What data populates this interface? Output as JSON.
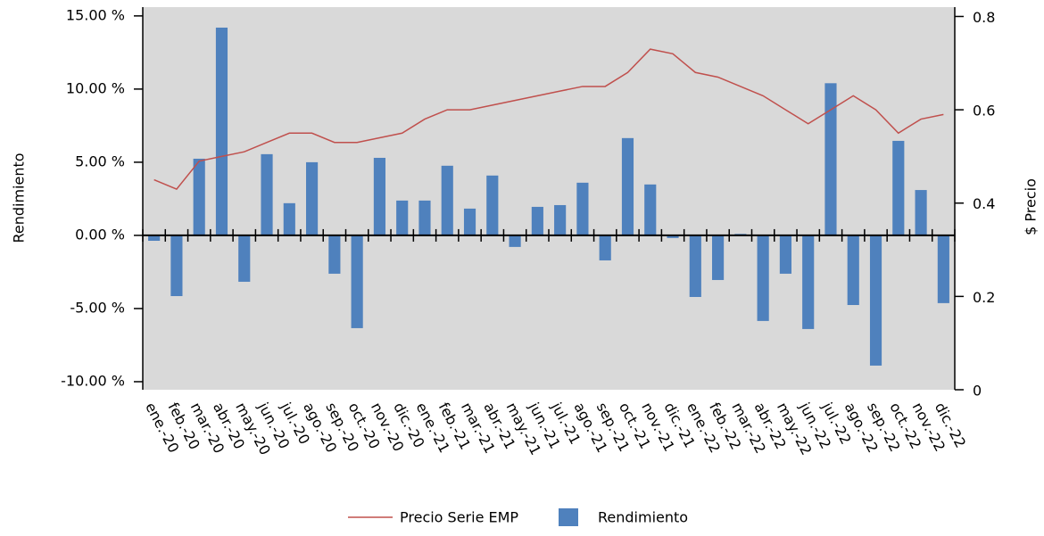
{
  "chart_data": {
    "type": "bar-line",
    "categories": [
      "ene.-20",
      "feb.-20",
      "mar.-20",
      "abr.-20",
      "may.-20",
      "jun.-20",
      "jul.-20",
      "ago.-20",
      "sep.-20",
      "oct.-20",
      "nov.-20",
      "dic.-20",
      "ene.-21",
      "feb.-21",
      "mar.-21",
      "abr.-21",
      "may.-21",
      "jun.-21",
      "jul.-21",
      "ago.-21",
      "sep.-21",
      "oct.-21",
      "nov.-21",
      "dic.-21",
      "ene.-22",
      "feb.-22",
      "mar.-22",
      "abr.-22",
      "may.-22",
      "jun.-22",
      "jul.-22",
      "ago.-22",
      "sep.-22",
      "oct.-22",
      "nov.-22",
      "dic.-22"
    ],
    "series": [
      {
        "name": "Rendimiento",
        "type": "bar",
        "color": "#4f81bd",
        "axis": "y",
        "values": [
          -0.37,
          -4.15,
          5.24,
          14.2,
          -3.17,
          5.55,
          2.2,
          5.0,
          -2.62,
          -6.34,
          5.3,
          2.38,
          2.38,
          4.76,
          1.83,
          4.09,
          -0.79,
          1.95,
          2.07,
          3.6,
          -1.71,
          6.65,
          3.48,
          -0.18,
          -4.21,
          -3.05,
          0.1,
          -5.85,
          -2.62,
          -6.4,
          10.4,
          -4.76,
          -8.9,
          6.46,
          3.1,
          -4.63
        ]
      },
      {
        "name": "Precio Serie EMP",
        "type": "line",
        "color": "#c0504d",
        "axis": "y2",
        "values": [
          0.45,
          0.43,
          0.49,
          0.5,
          0.51,
          0.53,
          0.55,
          0.55,
          0.53,
          0.53,
          0.54,
          0.55,
          0.58,
          0.6,
          0.6,
          0.61,
          0.62,
          0.63,
          0.64,
          0.65,
          0.65,
          0.68,
          0.73,
          0.72,
          0.68,
          0.67,
          0.65,
          0.63,
          0.6,
          0.57,
          0.6,
          0.63,
          0.6,
          0.55,
          0.58,
          0.59
        ]
      }
    ],
    "ylabel": "Rendimiento",
    "y2label": "$ Precio",
    "ylim": [
      -10.55,
      15.6
    ],
    "yticks": [
      {
        "value": -10,
        "label": "-10.00 %"
      },
      {
        "value": -5,
        "label": "-5.00 %"
      },
      {
        "value": 0,
        "label": "0.00 %"
      },
      {
        "value": 5,
        "label": "5.00 %"
      },
      {
        "value": 10,
        "label": "10.00 %"
      },
      {
        "value": 15,
        "label": "15.00 %"
      }
    ],
    "y2lim": [
      0,
      0.82
    ],
    "y2ticks": [
      0,
      0.2,
      0.4,
      0.6,
      0.8
    ],
    "background": "#d9d9d9"
  }
}
